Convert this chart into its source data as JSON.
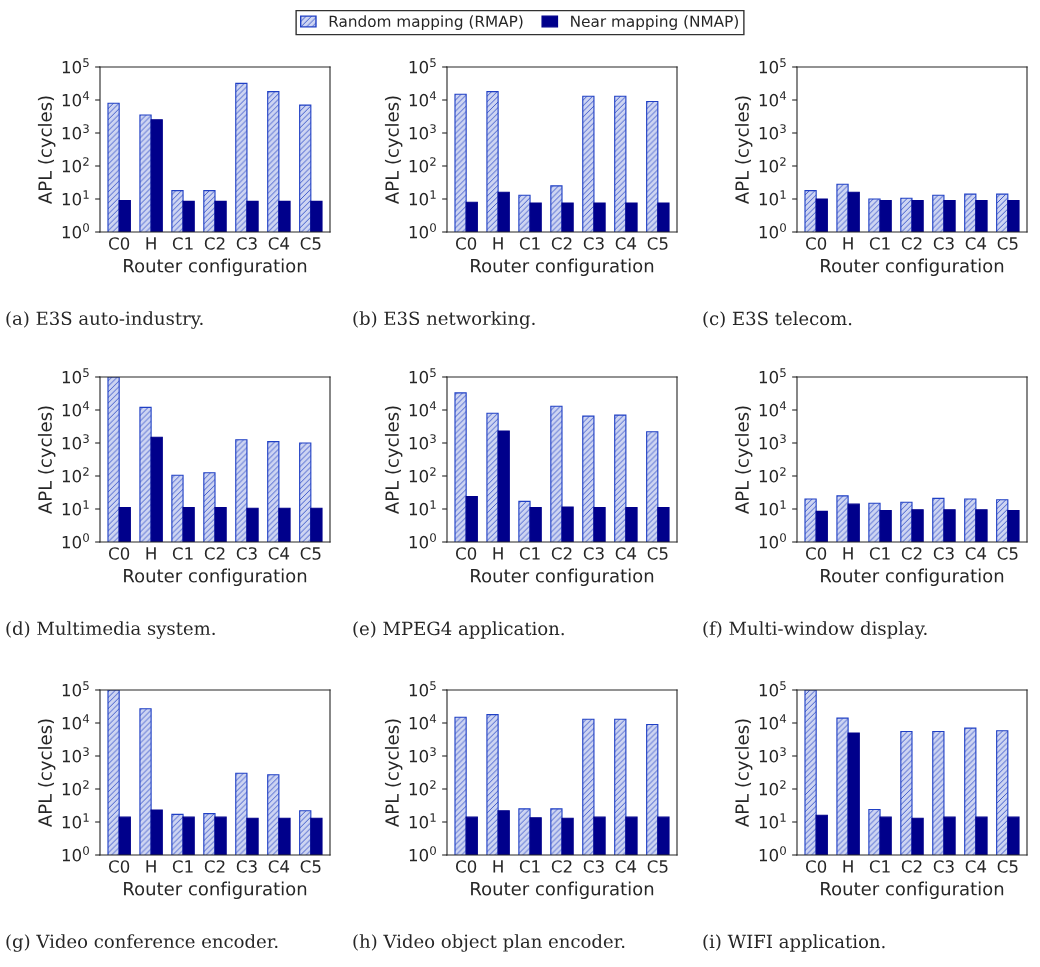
{
  "chart_data": [
    {
      "type": "bar",
      "title": "(a) E3S auto-industry.",
      "xlabel": "Router configuration",
      "ylabel": "APL (cycles)",
      "categories": [
        "C0",
        "H",
        "C1",
        "C2",
        "C3",
        "C4",
        "C5"
      ],
      "log": true,
      "ylim": [
        1,
        100000
      ],
      "yticks": [
        {
          "value": 1,
          "label": "10$^{0}$"
        },
        {
          "value": 10,
          "label": "10$^{1}$"
        },
        {
          "value": 100,
          "label": "10$^{2}$"
        },
        {
          "value": 1000,
          "label": "10$^{3}$"
        },
        {
          "value": 10000,
          "label": "10$^{4}$"
        },
        {
          "value": 100000,
          "label": "10$^{5}$"
        }
      ],
      "grid": false,
      "legend": "top",
      "series": [
        {
          "name": "Random mapping (RMAP)",
          "color": "#1f3fc4",
          "values": [
            8000,
            3500,
            18,
            18,
            32000,
            18000,
            7000
          ]
        },
        {
          "name": "Near mapping (NMAP)",
          "color": "#00008b",
          "values": [
            9,
            2500,
            8.5,
            8.5,
            8.5,
            8.5,
            8.5
          ]
        }
      ]
    },
    {
      "type": "bar",
      "title": "(b) E3S networking.",
      "xlabel": "Router configuration",
      "ylabel": "APL (cycles)",
      "categories": [
        "C0",
        "H",
        "C1",
        "C2",
        "C3",
        "C4",
        "C5"
      ],
      "log": true,
      "ylim": [
        1,
        100000
      ],
      "yticks": [
        {
          "value": 1,
          "label": "10$^{0}$"
        },
        {
          "value": 10,
          "label": "10$^{1}$"
        },
        {
          "value": 100,
          "label": "10$^{2}$"
        },
        {
          "value": 1000,
          "label": "10$^{3}$"
        },
        {
          "value": 10000,
          "label": "10$^{4}$"
        },
        {
          "value": 100000,
          "label": "10$^{5}$"
        }
      ],
      "grid": false,
      "series": [
        {
          "color": "#1f3fc4",
          "values": [
            15000,
            18000,
            13,
            25,
            13000,
            13000,
            9000
          ]
        },
        {
          "color": "#00008b",
          "values": [
            8,
            16,
            7.5,
            7.5,
            7.5,
            7.5,
            7.5
          ]
        }
      ]
    },
    {
      "type": "bar",
      "title": "(c) E3S telecom.",
      "xlabel": "Router configuration",
      "ylabel": "APL (cycles)",
      "categories": [
        "C0",
        "H",
        "C1",
        "C2",
        "C3",
        "C4",
        "C5"
      ],
      "log": true,
      "ylim": [
        1,
        100000
      ],
      "yticks": [
        {
          "value": 1,
          "label": "10$^{0}$"
        },
        {
          "value": 10,
          "label": "10$^{1}$"
        },
        {
          "value": 100,
          "label": "10$^{2}$"
        },
        {
          "value": 1000,
          "label": "10$^{3}$"
        },
        {
          "value": 10000,
          "label": "10$^{4}$"
        },
        {
          "value": 100000,
          "label": "10$^{5}$"
        }
      ],
      "grid": false,
      "series": [
        {
          "color": "#1f3fc4",
          "values": [
            18,
            28,
            10,
            10.5,
            13,
            14,
            14
          ]
        },
        {
          "color": "#00008b",
          "values": [
            10,
            16,
            9,
            9,
            9,
            9,
            9
          ]
        }
      ]
    },
    {
      "type": "bar",
      "title": "(d) Multimedia system.",
      "xlabel": "Router configuration",
      "ylabel": "APL (cycles)",
      "categories": [
        "C0",
        "H",
        "C1",
        "C2",
        "C3",
        "C4",
        "C5"
      ],
      "log": true,
      "ylim": [
        1,
        100000
      ],
      "yticks": [
        {
          "value": 1,
          "label": "10$^{0}$"
        },
        {
          "value": 10,
          "label": "10$^{1}$"
        },
        {
          "value": 100,
          "label": "10$^{2}$"
        },
        {
          "value": 1000,
          "label": "10$^{3}$"
        },
        {
          "value": 10000,
          "label": "10$^{4}$"
        },
        {
          "value": 100000,
          "label": "10$^{5}$"
        }
      ],
      "grid": false,
      "series": [
        {
          "color": "#1f3fc4",
          "values": [
            100000,
            12000,
            105,
            125,
            1250,
            1100,
            1000
          ]
        },
        {
          "color": "#00008b",
          "values": [
            11,
            1500,
            11,
            11,
            10.5,
            10.5,
            10.5
          ]
        }
      ]
    },
    {
      "type": "bar",
      "title": "(e) MPEG4 application.",
      "xlabel": "Router configuration",
      "ylabel": "APL (cycles)",
      "categories": [
        "C0",
        "H",
        "C1",
        "C2",
        "C3",
        "C4",
        "C5"
      ],
      "log": true,
      "ylim": [
        1,
        100000
      ],
      "yticks": [
        {
          "value": 1,
          "label": "10$^{0}$"
        },
        {
          "value": 10,
          "label": "10$^{1}$"
        },
        {
          "value": 100,
          "label": "10$^{2}$"
        },
        {
          "value": 1000,
          "label": "10$^{3}$"
        },
        {
          "value": 10000,
          "label": "10$^{4}$"
        },
        {
          "value": 100000,
          "label": "10$^{5}$"
        }
      ],
      "grid": false,
      "series": [
        {
          "color": "#1f3fc4",
          "values": [
            33000,
            8000,
            17,
            13000,
            6500,
            7000,
            2200
          ]
        },
        {
          "color": "#00008b",
          "values": [
            24,
            2300,
            11,
            11.5,
            11,
            11,
            11
          ]
        }
      ]
    },
    {
      "type": "bar",
      "title": "(f) Multi-window display.",
      "xlabel": "Router configuration",
      "ylabel": "APL (cycles)",
      "categories": [
        "C0",
        "H",
        "C1",
        "C2",
        "C3",
        "C4",
        "C5"
      ],
      "log": true,
      "ylim": [
        1,
        100000
      ],
      "yticks": [
        {
          "value": 1,
          "label": "10$^{0}$"
        },
        {
          "value": 10,
          "label": "10$^{1}$"
        },
        {
          "value": 100,
          "label": "10$^{2}$"
        },
        {
          "value": 1000,
          "label": "10$^{3}$"
        },
        {
          "value": 10000,
          "label": "10$^{4}$"
        },
        {
          "value": 100000,
          "label": "10$^{5}$"
        }
      ],
      "grid": false,
      "series": [
        {
          "color": "#1f3fc4",
          "values": [
            20,
            25,
            15,
            16,
            21,
            20,
            19
          ]
        },
        {
          "color": "#00008b",
          "values": [
            8.5,
            14,
            9,
            9.5,
            9.5,
            9.5,
            9
          ]
        }
      ]
    },
    {
      "type": "bar",
      "title": "(g) Video conference encoder.",
      "xlabel": "Router configuration",
      "ylabel": "APL (cycles)",
      "categories": [
        "C0",
        "H",
        "C1",
        "C2",
        "C3",
        "C4",
        "C5"
      ],
      "log": true,
      "ylim": [
        1,
        100000
      ],
      "yticks": [
        {
          "value": 1,
          "label": "10$^{0}$"
        },
        {
          "value": 10,
          "label": "10$^{1}$"
        },
        {
          "value": 100,
          "label": "10$^{2}$"
        },
        {
          "value": 1000,
          "label": "10$^{3}$"
        },
        {
          "value": 10000,
          "label": "10$^{4}$"
        },
        {
          "value": 100000,
          "label": "10$^{5}$"
        }
      ],
      "grid": false,
      "series": [
        {
          "color": "#1f3fc4",
          "values": [
            100000,
            27000,
            17,
            18,
            300,
            270,
            22
          ]
        },
        {
          "color": "#00008b",
          "values": [
            14,
            23,
            14,
            14,
            13,
            13,
            13
          ]
        }
      ]
    },
    {
      "type": "bar",
      "title": "(h) Video object plan encoder.",
      "xlabel": "Router configuration",
      "ylabel": "APL (cycles)",
      "categories": [
        "C0",
        "H",
        "C1",
        "C2",
        "C3",
        "C4",
        "C5"
      ],
      "log": true,
      "ylim": [
        1,
        100000
      ],
      "yticks": [
        {
          "value": 1,
          "label": "10$^{0}$"
        },
        {
          "value": 10,
          "label": "10$^{1}$"
        },
        {
          "value": 100,
          "label": "10$^{2}$"
        },
        {
          "value": 1000,
          "label": "10$^{3}$"
        },
        {
          "value": 10000,
          "label": "10$^{4}$"
        },
        {
          "value": 100000,
          "label": "10$^{5}$"
        }
      ],
      "grid": false,
      "series": [
        {
          "color": "#1f3fc4",
          "values": [
            15000,
            18000,
            25,
            25,
            13000,
            13000,
            9000
          ]
        },
        {
          "color": "#00008b",
          "values": [
            14,
            22,
            13.5,
            13,
            14,
            14,
            14
          ]
        }
      ]
    },
    {
      "type": "bar",
      "title": "(i) WIFI application.",
      "xlabel": "Router configuration",
      "ylabel": "APL (cycles)",
      "categories": [
        "C0",
        "H",
        "C1",
        "C2",
        "C3",
        "C4",
        "C5"
      ],
      "log": true,
      "ylim": [
        1,
        100000
      ],
      "yticks": [
        {
          "value": 1,
          "label": "10$^{0}$"
        },
        {
          "value": 10,
          "label": "10$^{1}$"
        },
        {
          "value": 100,
          "label": "10$^{2}$"
        },
        {
          "value": 1000,
          "label": "10$^{3}$"
        },
        {
          "value": 10000,
          "label": "10$^{4}$"
        },
        {
          "value": 100000,
          "label": "10$^{5}$"
        }
      ],
      "grid": false,
      "series": [
        {
          "color": "#1f3fc4",
          "values": [
            100000,
            14000,
            24,
            5500,
            5500,
            7000,
            5800
          ]
        },
        {
          "color": "#00008b",
          "values": [
            16,
            5000,
            14,
            13,
            14,
            14,
            14
          ]
        }
      ]
    }
  ]
}
